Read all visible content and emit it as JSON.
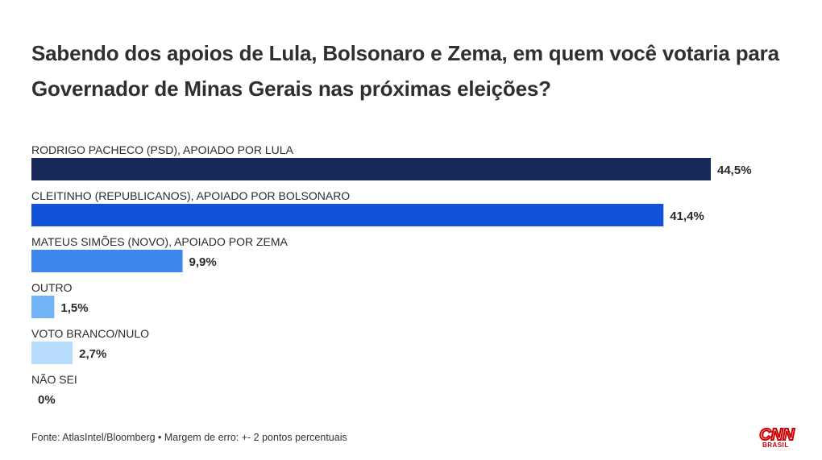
{
  "title": "Sabendo dos apoios de Lula, Bolsonaro e Zema, em quem você votaria para Governador de Minas Gerais nas próximas eleições?",
  "source": "Fonte: AtlasIntel/Bloomberg • Margem de erro: +- 2 pontos percentuais",
  "logo": {
    "text": "CNN",
    "subtext": "BRASIL",
    "color": "#cc0000"
  },
  "chart_data": {
    "type": "bar",
    "orientation": "horizontal",
    "categories": [
      "RODRIGO PACHECO (PSD), APOIADO POR LULA",
      "CLEITINHO (REPUBLICANOS), APOIADO POR BOLSONARO",
      "MATEUS SIMÕES (NOVO), APOIADO POR ZEMA",
      "OUTRO",
      "VOTO BRANCO/NULO",
      "NÃO SEI"
    ],
    "values": [
      44.5,
      41.4,
      9.9,
      1.5,
      2.7,
      0
    ],
    "value_labels": [
      "44,5%",
      "41,4%",
      "9,9%",
      "1,5%",
      "2,7%",
      "0%"
    ],
    "colors": [
      "#17285a",
      "#1351d8",
      "#3d87ec",
      "#72b4f5",
      "#b8dcfb",
      "#d9ecfd"
    ],
    "grid": false,
    "legend": "none"
  }
}
